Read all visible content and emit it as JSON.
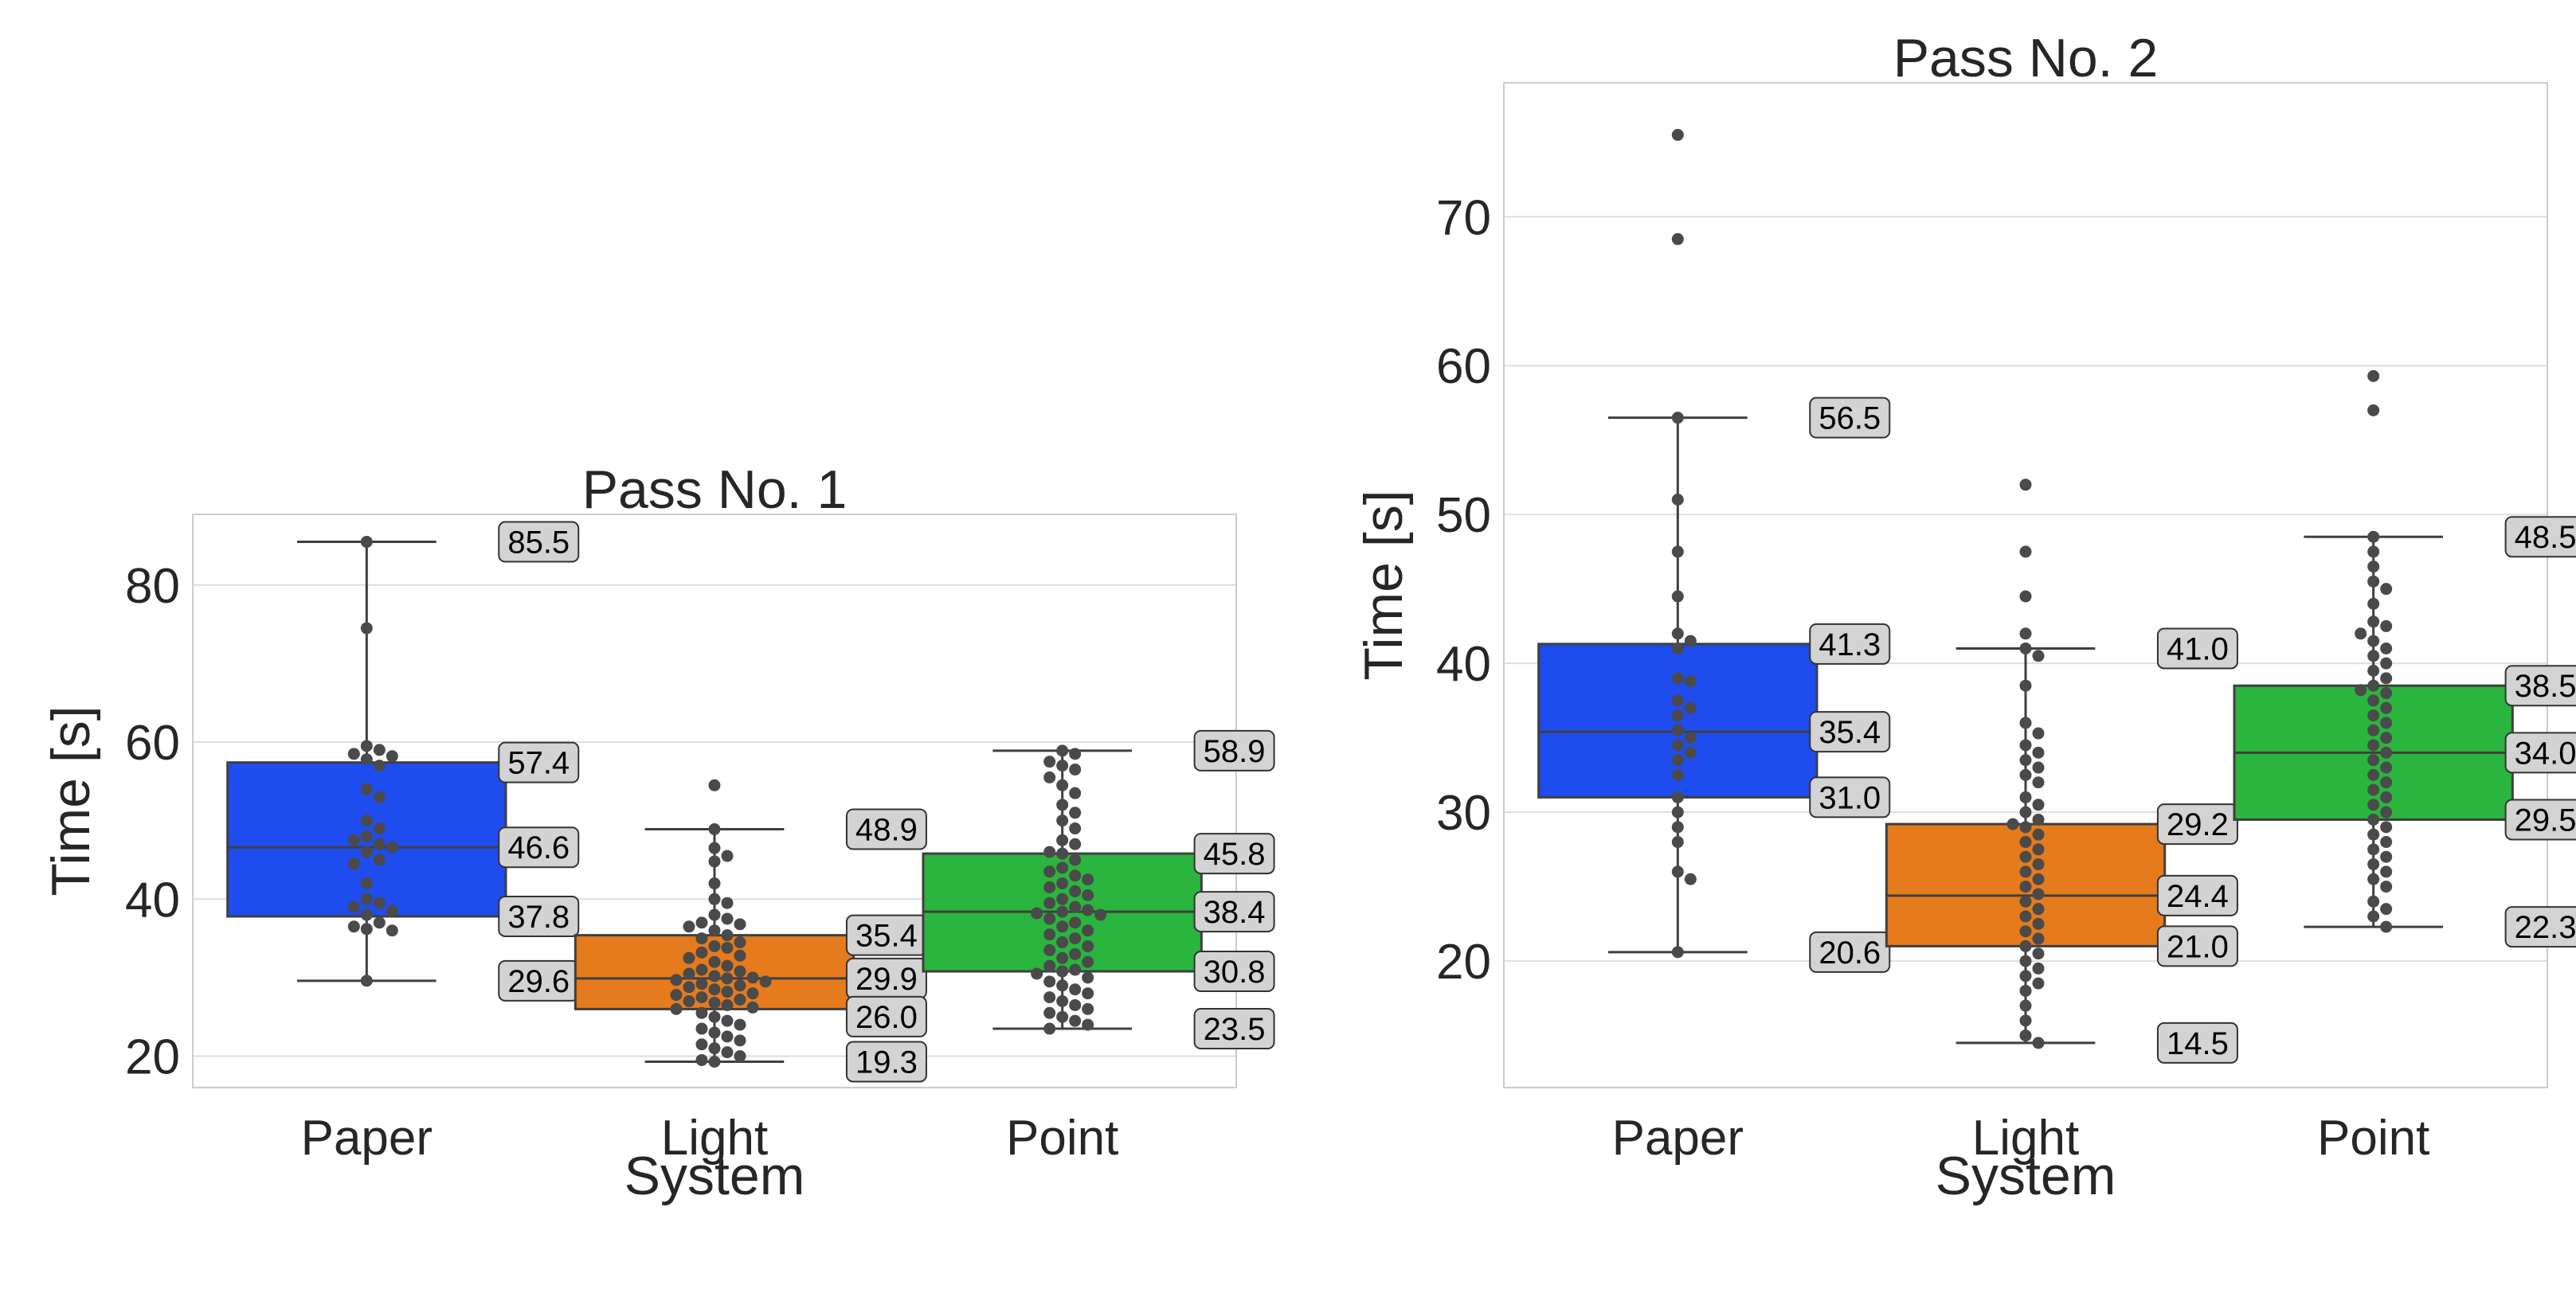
{
  "colors": {
    "Paper": "#1f4cee",
    "Light": "#e57b1d",
    "Point": "#2ab53e",
    "swarm": "#4a4a4a",
    "annotation_bg": "#d3d3d3"
  },
  "chart_data": [
    {
      "type": "box",
      "title": "Pass No. 1",
      "xlabel": "System",
      "ylabel": "Time [s]",
      "ylim": [
        16,
        89
      ],
      "yticks": [
        20,
        40,
        60,
        80
      ],
      "categories": [
        "Paper",
        "Light",
        "Point"
      ],
      "grid": true,
      "boxes": [
        {
          "name": "Paper",
          "whisker_low": 29.6,
          "q1": 37.8,
          "median": 46.6,
          "q3": 57.4,
          "whisker_high": 85.5,
          "outliers": []
        },
        {
          "name": "Light",
          "whisker_low": 19.3,
          "q1": 26.0,
          "median": 29.9,
          "q3": 35.4,
          "whisker_high": 48.9,
          "outliers": [
            54.5
          ]
        },
        {
          "name": "Point",
          "whisker_low": 23.5,
          "q1": 30.8,
          "median": 38.4,
          "q3": 45.8,
          "whisker_high": 58.9,
          "outliers": []
        }
      ],
      "annotations": [
        {
          "category": "Paper",
          "labels": [
            "85.5",
            "57.4",
            "46.6",
            "37.8",
            "29.6"
          ]
        },
        {
          "category": "Light",
          "labels": [
            "48.9",
            "35.4",
            "29.9",
            "26.0",
            "19.3"
          ]
        },
        {
          "category": "Point",
          "labels": [
            "58.9",
            "45.8",
            "38.4",
            "30.8",
            "23.5"
          ]
        }
      ],
      "swarm": {
        "Paper": [
          85.5,
          74.5,
          59.5,
          59.0,
          58.5,
          58.2,
          57.8,
          57.0,
          54.0,
          53.0,
          50.0,
          49.0,
          48.0,
          47.5,
          47.0,
          46.6,
          46.0,
          45.0,
          44.5,
          42.0,
          40.0,
          39.5,
          39.0,
          38.5,
          38.0,
          37.0,
          36.5,
          36.2,
          36.0,
          29.6
        ],
        "Light": [
          54.5,
          48.9,
          46.5,
          45.5,
          44.8,
          42.0,
          40.0,
          39.5,
          38.0,
          37.5,
          37.0,
          36.8,
          36.5,
          36.0,
          35.4,
          35.0,
          34.5,
          34.0,
          33.8,
          33.2,
          32.8,
          32.5,
          32.0,
          31.5,
          31.0,
          30.8,
          30.5,
          30.2,
          30.0,
          29.9,
          29.7,
          29.5,
          29.2,
          29.0,
          28.8,
          28.5,
          28.2,
          28.0,
          27.8,
          27.5,
          27.2,
          27.0,
          26.8,
          26.5,
          26.2,
          26.0,
          25.5,
          25.0,
          24.5,
          24.0,
          23.5,
          23.0,
          22.5,
          22.0,
          21.5,
          21.0,
          20.5,
          20.0,
          19.5,
          19.3
        ],
        "Point": [
          58.9,
          58.5,
          57.5,
          57.0,
          56.5,
          55.5,
          54.5,
          53.5,
          52.0,
          51.0,
          50.0,
          49.0,
          47.5,
          47.0,
          46.0,
          45.8,
          45.0,
          44.0,
          43.5,
          43.0,
          42.5,
          42.0,
          41.5,
          41.0,
          40.5,
          40.0,
          39.5,
          39.0,
          38.6,
          38.4,
          38.2,
          38.0,
          37.5,
          37.0,
          36.5,
          36.0,
          35.5,
          35.0,
          34.5,
          34.0,
          33.5,
          33.0,
          32.5,
          32.0,
          31.5,
          31.0,
          30.8,
          30.5,
          30.0,
          29.5,
          29.0,
          28.5,
          28.0,
          27.5,
          27.0,
          26.5,
          26.0,
          25.5,
          25.0,
          24.5,
          24.0,
          23.5
        ]
      }
    },
    {
      "type": "box",
      "title": "Pass No. 2",
      "xlabel": "System",
      "ylabel": "Time [s]",
      "ylim": [
        11.5,
        79
      ],
      "yticks": [
        20,
        30,
        40,
        50,
        60,
        70
      ],
      "categories": [
        "Paper",
        "Light",
        "Point"
      ],
      "grid": true,
      "boxes": [
        {
          "name": "Paper",
          "whisker_low": 20.6,
          "q1": 31.0,
          "median": 35.4,
          "q3": 41.3,
          "whisker_high": 56.5,
          "outliers": [
            68.5,
            75.5
          ]
        },
        {
          "name": "Light",
          "whisker_low": 14.5,
          "q1": 21.0,
          "median": 24.4,
          "q3": 29.2,
          "whisker_high": 41.0,
          "outliers": [
            44.5,
            47.5,
            52.0
          ]
        },
        {
          "name": "Point",
          "whisker_low": 22.3,
          "q1": 29.5,
          "median": 34.0,
          "q3": 38.5,
          "whisker_high": 48.5,
          "outliers": [
            57.0,
            59.3
          ]
        }
      ],
      "annotations": [
        {
          "category": "Paper",
          "labels": [
            "56.5",
            "41.3",
            "35.4",
            "31.0",
            "20.6"
          ]
        },
        {
          "category": "Light",
          "labels": [
            "41.0",
            "29.2",
            "24.4",
            "21.0",
            "14.5"
          ]
        },
        {
          "category": "Point",
          "labels": [
            "48.5",
            "38.5",
            "34.0",
            "29.5",
            "22.3"
          ]
        }
      ],
      "swarm": {
        "Paper": [
          75.5,
          68.5,
          56.5,
          51.0,
          47.5,
          44.5,
          42.0,
          41.5,
          41.0,
          39.0,
          38.8,
          37.5,
          37.0,
          36.5,
          35.5,
          35.0,
          34.5,
          34.0,
          33.5,
          32.5,
          31.0,
          30.0,
          29.0,
          28.0,
          26.0,
          25.5,
          20.6
        ],
        "Light": [
          52.0,
          47.5,
          44.5,
          42.0,
          41.0,
          40.5,
          38.5,
          36.0,
          35.3,
          34.5,
          34.0,
          33.5,
          33.0,
          32.5,
          32.0,
          31.0,
          30.5,
          30.0,
          29.5,
          29.2,
          29.0,
          28.5,
          28.0,
          27.5,
          27.0,
          26.5,
          26.0,
          25.5,
          25.0,
          24.5,
          24.0,
          23.5,
          23.0,
          22.5,
          22.0,
          21.5,
          21.0,
          20.5,
          20.0,
          19.5,
          19.0,
          18.5,
          18.0,
          17.0,
          16.0,
          15.0,
          14.5
        ],
        "Point": [
          59.3,
          57.0,
          48.5,
          47.5,
          46.5,
          45.5,
          45.0,
          44.0,
          42.8,
          42.5,
          42.0,
          41.5,
          41.0,
          40.5,
          40.0,
          39.5,
          39.0,
          38.5,
          38.2,
          38.0,
          37.5,
          37.0,
          36.5,
          36.0,
          35.5,
          35.0,
          34.5,
          34.0,
          33.5,
          33.0,
          32.5,
          32.0,
          31.5,
          31.0,
          30.5,
          30.0,
          29.5,
          29.0,
          28.5,
          28.0,
          27.5,
          27.0,
          26.5,
          26.0,
          25.5,
          25.0,
          24.0,
          23.5,
          23.0,
          22.3
        ]
      }
    }
  ]
}
